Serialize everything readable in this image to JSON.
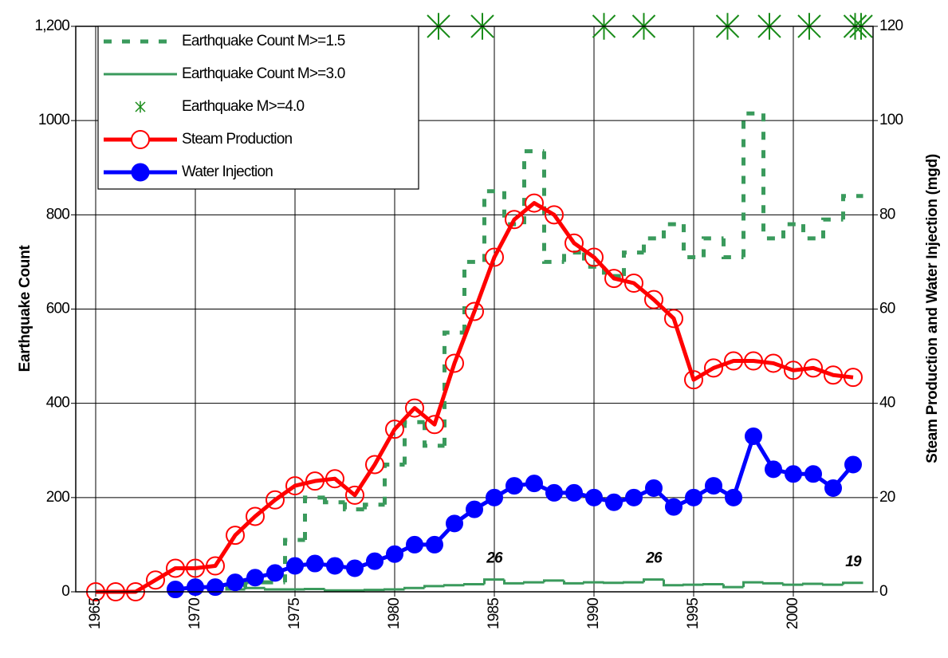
{
  "chart_data": {
    "type": "line",
    "y_label": "Earthquake Count",
    "y2_label": "Steam Production and  Water Injection (mgd)",
    "xlim": [
      1964,
      2004
    ],
    "xticks": [
      1965,
      1970,
      1975,
      1980,
      1985,
      1990,
      1995,
      2000
    ],
    "ylim": [
      0,
      1200
    ],
    "yticks": [
      0,
      200,
      400,
      600,
      800,
      1000,
      {
        "value": 1200,
        "label": "1,200"
      }
    ],
    "y2lim": [
      0,
      120
    ],
    "y2ticks": [
      0,
      20,
      40,
      60,
      80,
      100,
      120
    ],
    "grid": true,
    "legend": "top-left",
    "series": [
      {
        "name": "Earthquake Count M>=1.5",
        "color": "#3a9a5c",
        "style": "dashed-step",
        "x": [
          1972,
          1973,
          1974,
          1975,
          1976,
          1977,
          1978,
          1979,
          1980,
          1981,
          1982,
          1983,
          1984,
          1985,
          1986,
          1987,
          1988,
          1989,
          1990,
          1991,
          1992,
          1993,
          1994,
          1995,
          1996,
          1997,
          1998,
          1999,
          2000,
          2001,
          2002,
          2003
        ],
        "values": [
          10,
          20,
          20,
          110,
          200,
          190,
          175,
          185,
          270,
          360,
          310,
          550,
          700,
          850,
          780,
          935,
          700,
          720,
          690,
          670,
          720,
          750,
          780,
          710,
          750,
          710,
          1015,
          750,
          780,
          750,
          790,
          840
        ]
      },
      {
        "name": "Earthquake Count M>=3.0",
        "color": "#3a9a5c",
        "style": "step",
        "x": [
          1972,
          1973,
          1974,
          1975,
          1976,
          1977,
          1978,
          1979,
          1980,
          1981,
          1982,
          1983,
          1984,
          1985,
          1986,
          1987,
          1988,
          1989,
          1990,
          1991,
          1992,
          1993,
          1994,
          1995,
          1996,
          1997,
          1998,
          1999,
          2000,
          2001,
          2002,
          2003
        ],
        "values": [
          5,
          8,
          5,
          5,
          6,
          3,
          3,
          4,
          5,
          8,
          12,
          14,
          16,
          26,
          18,
          20,
          24,
          18,
          20,
          19,
          20,
          26,
          14,
          15,
          16,
          10,
          20,
          18,
          15,
          17,
          15,
          19
        ],
        "value_labels": [
          null,
          null,
          null,
          null,
          null,
          null,
          null,
          null,
          null,
          null,
          null,
          null,
          null,
          "26",
          null,
          null,
          null,
          null,
          null,
          null,
          null,
          "26",
          null,
          null,
          null,
          null,
          null,
          null,
          null,
          null,
          null,
          "19"
        ]
      },
      {
        "name": "Earthquake M>=4.0",
        "color": "#1a8c1a",
        "style": "asterisk",
        "x": [
          1982.2,
          1984.4,
          1990.5,
          1992.5,
          1996.7,
          1998.8,
          2000.8,
          2003.1,
          2003.4
        ],
        "values": [
          1200,
          1200,
          1200,
          1200,
          1200,
          1200,
          1200,
          1200,
          1200
        ]
      },
      {
        "name": "Steam Production",
        "color": "#ff0000",
        "style": "open-circle",
        "axis": "y2",
        "x": [
          1965,
          1966,
          1967,
          1968,
          1969,
          1970,
          1971,
          1972,
          1973,
          1974,
          1975,
          1976,
          1977,
          1978,
          1979,
          1980,
          1981,
          1982,
          1983,
          1984,
          1985,
          1986,
          1987,
          1988,
          1989,
          1990,
          1991,
          1992,
          1993,
          1994,
          1995,
          1996,
          1997,
          1998,
          1999,
          2000,
          2001,
          2002,
          2003
        ],
        "values": [
          0,
          0,
          0,
          2.5,
          5,
          5,
          5.5,
          12,
          16,
          19.5,
          22.5,
          23.5,
          24,
          20.5,
          27,
          34.5,
          39,
          35.5,
          48.5,
          59.5,
          71,
          79,
          82.5,
          80,
          74,
          71,
          66.5,
          65.5,
          62,
          58,
          45,
          47.5,
          49,
          49,
          48.5,
          47,
          47.5,
          46,
          45.5
        ]
      },
      {
        "name": "Water Injection",
        "color": "#0000ff",
        "style": "filled-circle",
        "axis": "y2",
        "x": [
          1969,
          1970,
          1971,
          1972,
          1973,
          1974,
          1975,
          1976,
          1977,
          1978,
          1979,
          1980,
          1981,
          1982,
          1983,
          1984,
          1985,
          1986,
          1987,
          1988,
          1989,
          1990,
          1991,
          1992,
          1993,
          1994,
          1995,
          1996,
          1997,
          1998,
          1999,
          2000,
          2001,
          2002,
          2003
        ],
        "values": [
          0.5,
          1,
          1,
          2,
          3,
          4,
          5.5,
          6,
          5.5,
          5,
          6.5,
          8,
          10,
          10,
          14.5,
          17.5,
          20,
          22.5,
          23,
          21,
          21,
          20,
          19,
          20,
          22,
          18,
          20,
          22.5,
          20,
          33,
          26,
          25,
          25,
          22,
          27
        ]
      }
    ]
  }
}
